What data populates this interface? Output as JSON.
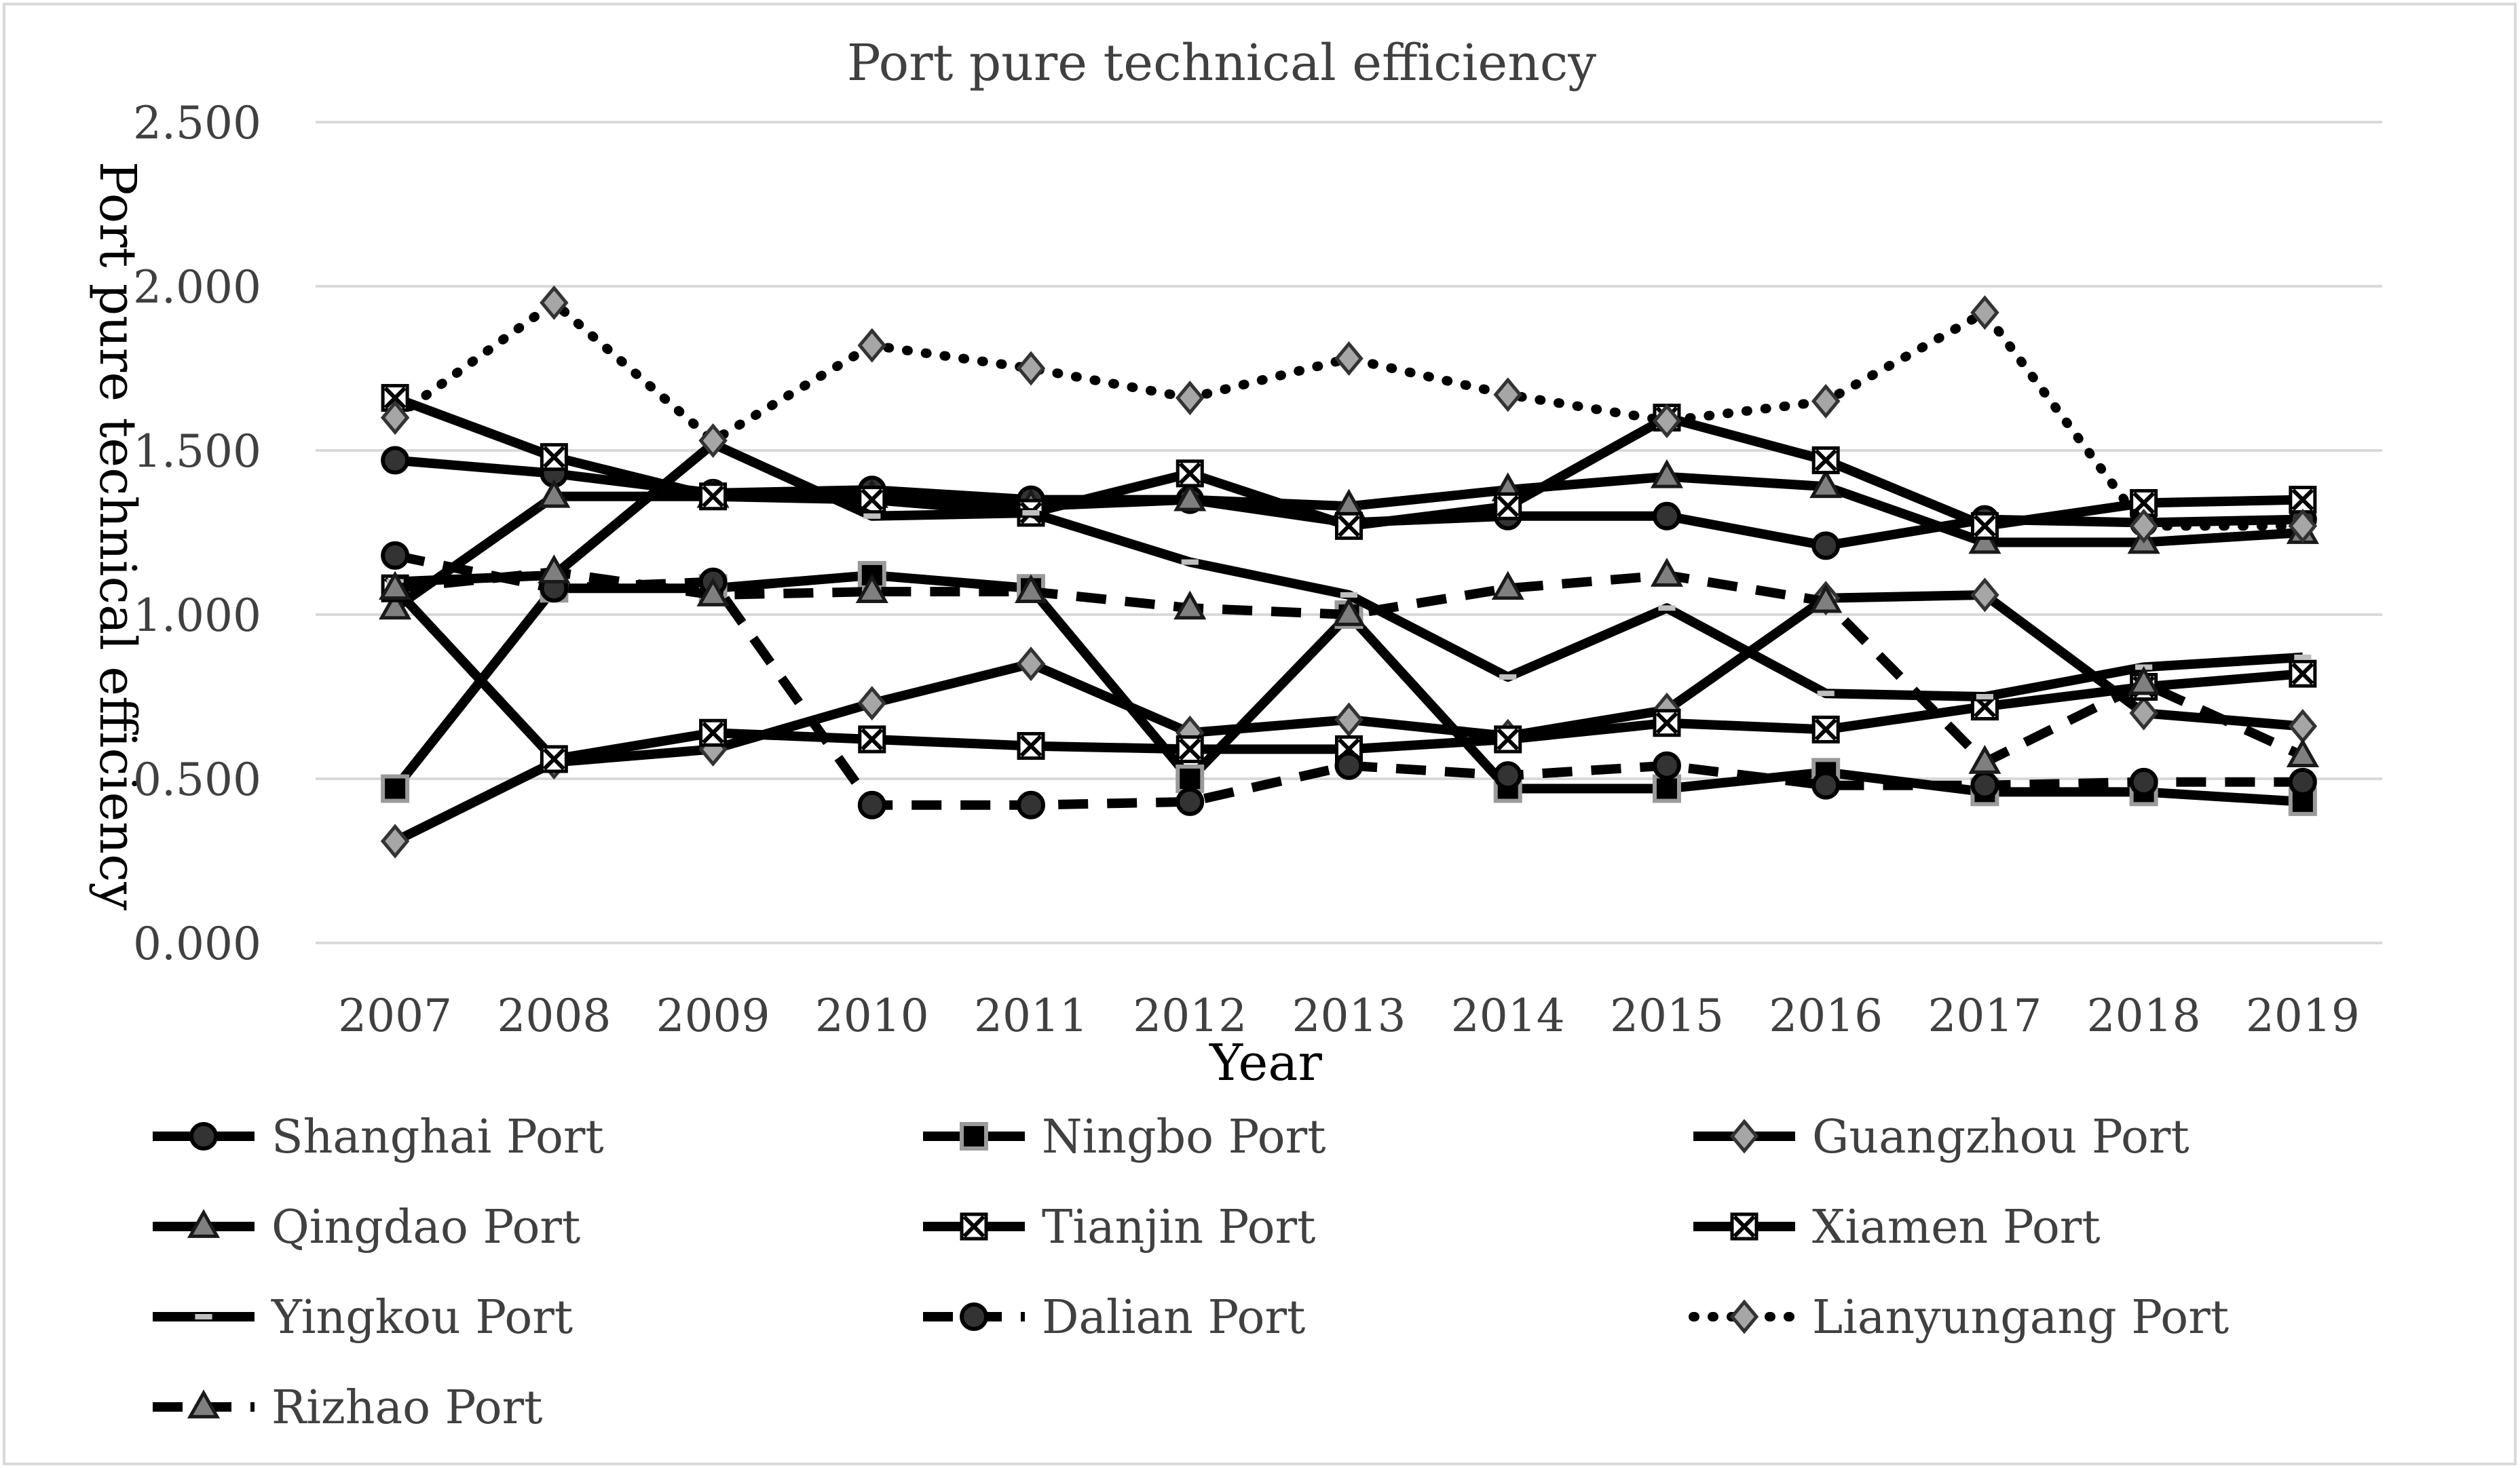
{
  "chart_data": {
    "type": "line",
    "title": "Port pure technical efficiency",
    "xlabel": "Year",
    "ylabel": "Port pure technical efficiency",
    "ylim": [
      0,
      2.5
    ],
    "yticks": [
      "0.000",
      "0.500",
      "1.000",
      "1.500",
      "2.000",
      "2.500"
    ],
    "ytick_values": [
      0,
      0.5,
      1,
      1.5,
      2,
      2.5
    ],
    "categories": [
      "2007",
      "2008",
      "2009",
      "2010",
      "2011",
      "2012",
      "2013",
      "2014",
      "2015",
      "2016",
      "2017",
      "2018",
      "2019"
    ],
    "grid": true,
    "legend_position": "bottom",
    "series": [
      {
        "name": "Shanghai Port",
        "marker": "circle",
        "line": "solid",
        "values": [
          1.47,
          1.43,
          1.37,
          1.38,
          1.35,
          1.35,
          1.28,
          1.3,
          1.3,
          1.21,
          1.29,
          1.28,
          1.29
        ]
      },
      {
        "name": "Ningbo Port",
        "marker": "square",
        "line": "solid",
        "values": [
          0.47,
          1.08,
          1.08,
          1.12,
          1.08,
          0.5,
          1.0,
          0.47,
          0.47,
          0.52,
          0.46,
          0.46,
          0.43
        ]
      },
      {
        "name": "Guangzhou Port",
        "marker": "diamond",
        "line": "solid",
        "values": [
          0.31,
          0.55,
          0.59,
          0.73,
          0.85,
          0.64,
          0.68,
          0.63,
          0.71,
          1.05,
          1.06,
          0.7,
          0.66
        ]
      },
      {
        "name": "Qingdao Port",
        "marker": "triangle",
        "line": "solid",
        "values": [
          1.02,
          1.36,
          1.36,
          1.36,
          1.33,
          1.35,
          1.33,
          1.38,
          1.42,
          1.39,
          1.22,
          1.22,
          1.25
        ]
      },
      {
        "name": "Tianjin Port",
        "marker": "x-box",
        "line": "solid",
        "values": [
          1.08,
          0.56,
          0.64,
          0.62,
          0.6,
          0.59,
          0.59,
          0.62,
          0.67,
          0.65,
          0.72,
          0.78,
          0.82
        ]
      },
      {
        "name": "Xiamen Port",
        "marker": "x-box",
        "line": "solid",
        "values": [
          1.66,
          1.48,
          1.36,
          1.35,
          1.31,
          1.43,
          1.27,
          1.33,
          1.6,
          1.47,
          1.27,
          1.34,
          1.35
        ]
      },
      {
        "name": "Yingkou Port",
        "marker": "dash",
        "line": "solid",
        "values": [
          1.1,
          1.12,
          1.52,
          1.3,
          1.31,
          1.16,
          1.06,
          0.81,
          1.02,
          0.76,
          0.75,
          0.84,
          0.87
        ]
      },
      {
        "name": "Dalian Port",
        "marker": "circle",
        "line": "dashed",
        "values": [
          1.18,
          1.08,
          1.1,
          0.42,
          0.42,
          0.43,
          0.54,
          0.51,
          0.54,
          0.48,
          0.48,
          0.49,
          0.49
        ]
      },
      {
        "name": "Lianyungang Port",
        "marker": "diamond",
        "line": "dotted",
        "values": [
          1.6,
          1.95,
          1.53,
          1.82,
          1.75,
          1.66,
          1.78,
          1.67,
          1.59,
          1.65,
          1.92,
          1.27,
          1.27
        ]
      },
      {
        "name": "Rizhao Port",
        "marker": "triangle",
        "line": "dashed",
        "values": [
          1.08,
          1.13,
          1.06,
          1.07,
          1.07,
          1.02,
          1.0,
          1.08,
          1.12,
          1.04,
          0.55,
          0.79,
          0.57
        ]
      }
    ]
  },
  "colors": {
    "line": "#000000",
    "grid": "#d9d9d9",
    "text": "#404040",
    "frame": "#d9d9d9"
  }
}
